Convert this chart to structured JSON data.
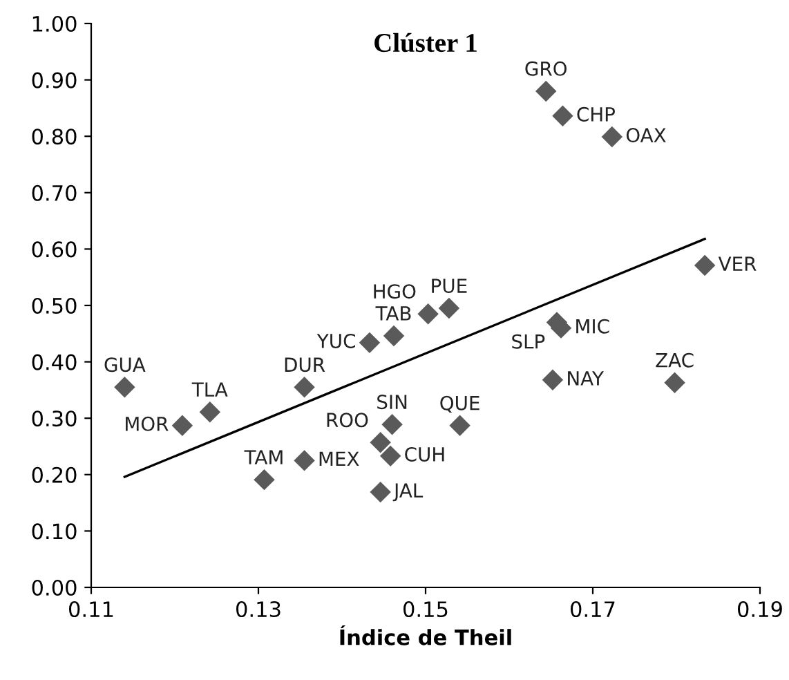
{
  "chart_data": {
    "type": "scatter",
    "title": "Clúster 1",
    "xlabel": "Índice de Theil",
    "series": [
      {
        "color": "#5a5a5a",
        "marker": "diamond",
        "x": [
          0.114,
          0.1209,
          0.1242,
          0.1307,
          0.1355,
          0.1355,
          0.1446,
          0.1446,
          0.1458,
          0.146,
          0.1433,
          0.1462,
          0.1503,
          0.1528,
          0.1644,
          0.1664,
          0.1723,
          0.1834,
          0.1657,
          0.1662,
          0.1652,
          0.1798,
          0.1541
        ],
        "values": [
          0.355,
          0.287,
          0.311,
          0.191,
          0.355,
          0.225,
          0.169,
          0.257,
          0.233,
          0.289,
          0.434,
          0.446,
          0.485,
          0.495,
          0.88,
          0.836,
          0.799,
          0.571,
          0.47,
          0.46,
          0.368,
          0.363,
          0.287
        ]
      },
      {
        "type": "line",
        "color": "#000000",
        "marker": "none",
        "line_style": "solid",
        "x": [
          0.114,
          0.1834
        ],
        "values": [
          0.196,
          0.618
        ]
      }
    ],
    "annotations": [
      {
        "text": "GUA",
        "x": 0.114,
        "y": 0.355
      },
      {
        "text": "MOR",
        "x": 0.1209,
        "y": 0.287
      },
      {
        "text": "TLA",
        "x": 0.1242,
        "y": 0.311
      },
      {
        "text": "TAM",
        "x": 0.1307,
        "y": 0.191
      },
      {
        "text": "DUR",
        "x": 0.1355,
        "y": 0.355
      },
      {
        "text": "MEX",
        "x": 0.1355,
        "y": 0.225
      },
      {
        "text": "JAL",
        "x": 0.1446,
        "y": 0.169
      },
      {
        "text": "ROO",
        "x": 0.1446,
        "y": 0.257
      },
      {
        "text": "CUH",
        "x": 0.1458,
        "y": 0.233
      },
      {
        "text": "SIN",
        "x": 0.146,
        "y": 0.289
      },
      {
        "text": "YUC",
        "x": 0.1433,
        "y": 0.434
      },
      {
        "text": "TAB",
        "x": 0.1462,
        "y": 0.446
      },
      {
        "text": "HGO",
        "x": 0.1503,
        "y": 0.485
      },
      {
        "text": "PUE",
        "x": 0.1528,
        "y": 0.495
      },
      {
        "text": "GRO",
        "x": 0.1644,
        "y": 0.88
      },
      {
        "text": "CHP",
        "x": 0.1664,
        "y": 0.836
      },
      {
        "text": "OAX",
        "x": 0.1723,
        "y": 0.799
      },
      {
        "text": "VER",
        "x": 0.1834,
        "y": 0.571
      },
      {
        "text": "SLP",
        "x": 0.1657,
        "y": 0.47
      },
      {
        "text": "MIC",
        "x": 0.1662,
        "y": 0.46
      },
      {
        "text": "NAY",
        "x": 0.1652,
        "y": 0.368
      },
      {
        "text": "ZAC",
        "x": 0.1798,
        "y": 0.363
      },
      {
        "text": "QUE",
        "x": 0.1541,
        "y": 0.287
      }
    ],
    "xlim": [
      0.11,
      0.19
    ],
    "xticks": [
      0.11,
      0.13,
      0.15,
      0.17,
      0.19
    ],
    "ylim": [
      0,
      1
    ],
    "yticks": [
      {
        "value": 0,
        "label": "0.00"
      },
      {
        "value": 0.1,
        "label": "0.10"
      },
      {
        "value": 0.2,
        "label": "0.20"
      },
      {
        "value": 0.3,
        "label": "0.30"
      },
      {
        "value": 0.4,
        "label": "0.40"
      },
      {
        "value": 0.5,
        "label": "0.50"
      },
      {
        "value": 0.6,
        "label": "0.60"
      },
      {
        "value": 0.7,
        "label": "0.70"
      },
      {
        "value": 0.8,
        "label": "0.80"
      },
      {
        "value": 0.9,
        "label": "0.90"
      },
      {
        "value": 1,
        "label": "1.00"
      }
    ],
    "grid": false,
    "legend": false
  }
}
